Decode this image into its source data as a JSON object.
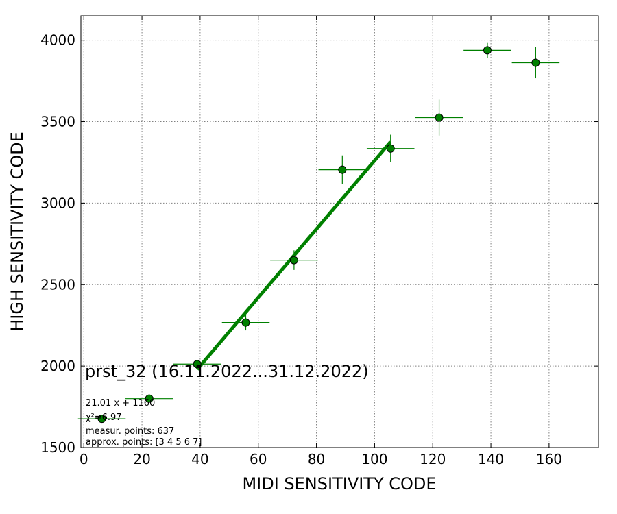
{
  "chart_data": {
    "type": "scatter",
    "xlabel": "MIDI SENSITIVITY CODE",
    "ylabel": "HIGH SENSITIVITY CODE",
    "xlim": [
      -1,
      177
    ],
    "ylim": [
      1500,
      4150
    ],
    "xticks": [
      0,
      20,
      40,
      60,
      80,
      100,
      120,
      140,
      160
    ],
    "yticks": [
      1500,
      2000,
      2500,
      3000,
      3500,
      4000
    ],
    "grid": true,
    "points": [
      {
        "x": 6.2,
        "y": 1676,
        "xerr": 8.2,
        "yerr": 12
      },
      {
        "x": 22.5,
        "y": 1800,
        "xerr": 8.2,
        "yerr": 12
      },
      {
        "x": 39.0,
        "y": 2012,
        "xerr": 8.2,
        "yerr": 20
      },
      {
        "x": 55.7,
        "y": 2267,
        "xerr": 8.2,
        "yerr": 48
      },
      {
        "x": 72.3,
        "y": 2650,
        "xerr": 8.2,
        "yerr": 60
      },
      {
        "x": 88.9,
        "y": 3205,
        "xerr": 8.2,
        "yerr": 88
      },
      {
        "x": 105.5,
        "y": 3335,
        "xerr": 8.2,
        "yerr": 85
      },
      {
        "x": 122.2,
        "y": 3525,
        "xerr": 8.2,
        "yerr": 110
      },
      {
        "x": 138.8,
        "y": 3938,
        "xerr": 8.2,
        "yerr": 45
      },
      {
        "x": 155.4,
        "y": 3862,
        "xerr": 8.2,
        "yerr": 95
      }
    ],
    "fit": {
      "slope": 21.01,
      "intercept": 1160,
      "x_range": [
        39.0,
        105.5
      ]
    },
    "series_color": "#008000",
    "marker_edge": "#000000",
    "annotations": {
      "title": "prst_32 (16.11.2022...31.12.2022)",
      "equation": "21.01 x + 1160",
      "chi2": "χ²=6.97",
      "measur_points": "measur. points: 637",
      "approx_points": "approx. points: [3 4 5 6 7]"
    }
  }
}
